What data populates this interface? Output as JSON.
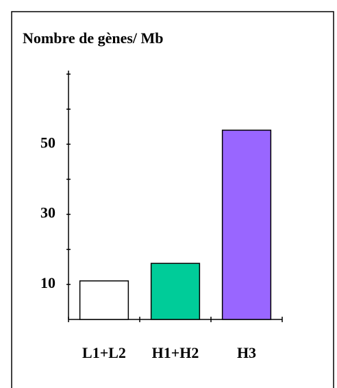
{
  "chart_data": {
    "type": "bar",
    "title": "Nombre de gènes/ Mb",
    "categories": [
      "L1+L2",
      "H1+H2",
      "H3"
    ],
    "values": [
      11,
      16,
      54
    ],
    "colors": [
      "#ffffff",
      "#00cc99",
      "#9966ff"
    ],
    "ylim": [
      0,
      71
    ],
    "yticks": [
      10,
      30,
      50
    ],
    "minor_yticks": [
      20,
      40,
      60,
      70
    ],
    "grid": false
  }
}
